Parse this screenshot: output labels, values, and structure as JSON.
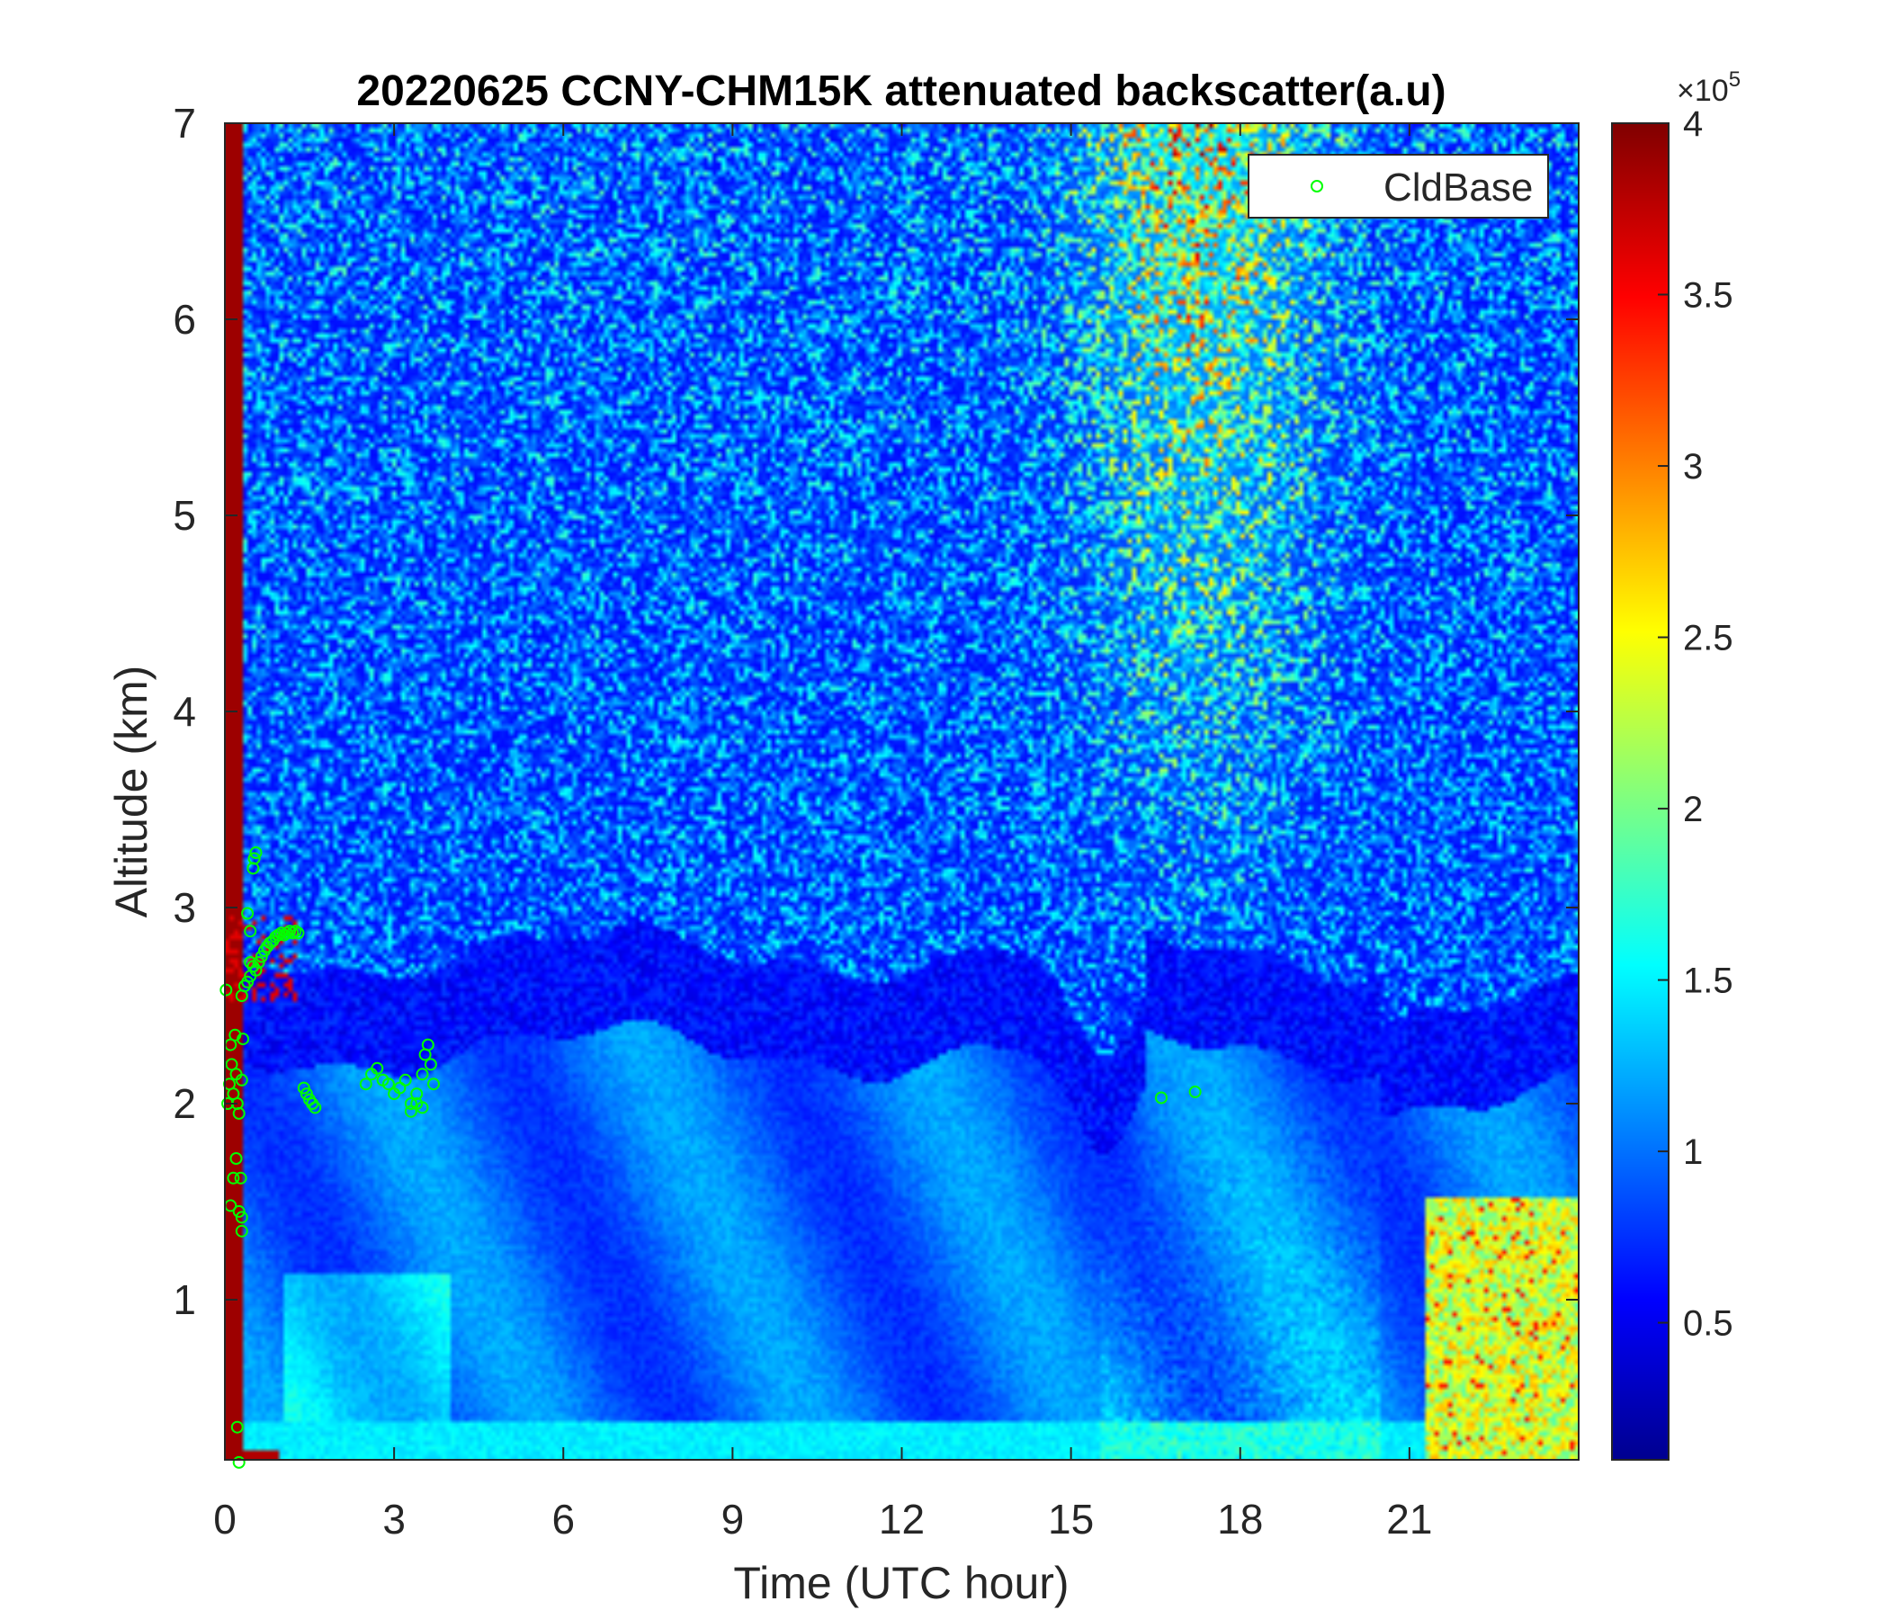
{
  "chart_data": {
    "type": "heatmap",
    "title": "20220625 CCNY-CHM15K attenuated backscatter(a.u)",
    "xlabel": "Time (UTC hour)",
    "ylabel": "Altitude (km)",
    "xlim": [
      0,
      24
    ],
    "ylim": [
      0.15,
      7
    ],
    "xticks": [
      0,
      3,
      6,
      9,
      12,
      15,
      18,
      21
    ],
    "xtick_labels": [
      "0",
      "3",
      "6",
      "9",
      "12",
      "15",
      "18",
      "21"
    ],
    "yticks": [
      1,
      2,
      3,
      4,
      5,
      6,
      7
    ],
    "ytick_labels": [
      "1",
      "2",
      "3",
      "4",
      "5",
      "6",
      "7"
    ],
    "colormap": "jet",
    "colorbar": {
      "range": [
        0.1,
        4
      ],
      "ticks": [
        0.5,
        1,
        1.5,
        2,
        2.5,
        3,
        3.5,
        4
      ],
      "tick_labels": [
        "0.5",
        "1",
        "1.5",
        "2",
        "2.5",
        "3",
        "3.5",
        "4"
      ],
      "exponent_base": "×10",
      "exponent_power": "5",
      "unit": "a.u"
    },
    "legend": {
      "location": "top-right",
      "entries": [
        "CldBase"
      ]
    },
    "grid": false,
    "series": [
      {
        "name": "CldBase",
        "type": "scatter",
        "marker": "open-circle",
        "color": "#00ff00",
        "x": [
          0.02,
          0.05,
          0.08,
          0.1,
          0.12,
          0.15,
          0.18,
          0.2,
          0.22,
          0.25,
          0.1,
          0.15,
          0.2,
          0.25,
          0.3,
          0.28,
          0.3,
          0.32,
          0.3,
          0.22,
          0.25,
          0.3,
          0.35,
          0.4,
          0.45,
          0.5,
          0.55,
          0.6,
          0.65,
          0.7,
          0.75,
          0.8,
          0.85,
          0.9,
          0.95,
          1.0,
          1.05,
          1.1,
          1.15,
          1.2,
          1.25,
          1.3,
          0.4,
          0.45,
          0.5,
          0.52,
          0.55,
          0.45,
          1.4,
          1.45,
          1.5,
          1.55,
          1.6,
          2.5,
          2.6,
          2.7,
          2.8,
          2.9,
          3.0,
          3.1,
          3.2,
          3.3,
          3.4,
          3.5,
          3.55,
          3.6,
          3.65,
          3.7,
          3.3,
          3.4,
          3.5,
          16.6,
          17.2
        ],
        "y": [
          2.58,
          2.0,
          2.1,
          2.3,
          2.2,
          2.05,
          2.35,
          2.15,
          2.0,
          1.95,
          1.48,
          1.62,
          1.72,
          1.45,
          1.35,
          1.62,
          1.42,
          2.33,
          2.12,
          0.35,
          0.17,
          2.55,
          2.6,
          2.62,
          2.65,
          2.7,
          2.68,
          2.72,
          2.75,
          2.78,
          2.8,
          2.82,
          2.83,
          2.85,
          2.86,
          2.87,
          2.86,
          2.87,
          2.88,
          2.87,
          2.88,
          2.87,
          2.97,
          2.88,
          3.2,
          3.25,
          3.28,
          2.72,
          2.08,
          2.05,
          2.02,
          2.0,
          1.98,
          2.1,
          2.15,
          2.18,
          2.12,
          2.1,
          2.05,
          2.08,
          2.12,
          2.0,
          2.05,
          2.15,
          2.25,
          2.3,
          2.2,
          2.1,
          1.96,
          2.0,
          1.98,
          2.03,
          2.06
        ]
      }
    ]
  }
}
